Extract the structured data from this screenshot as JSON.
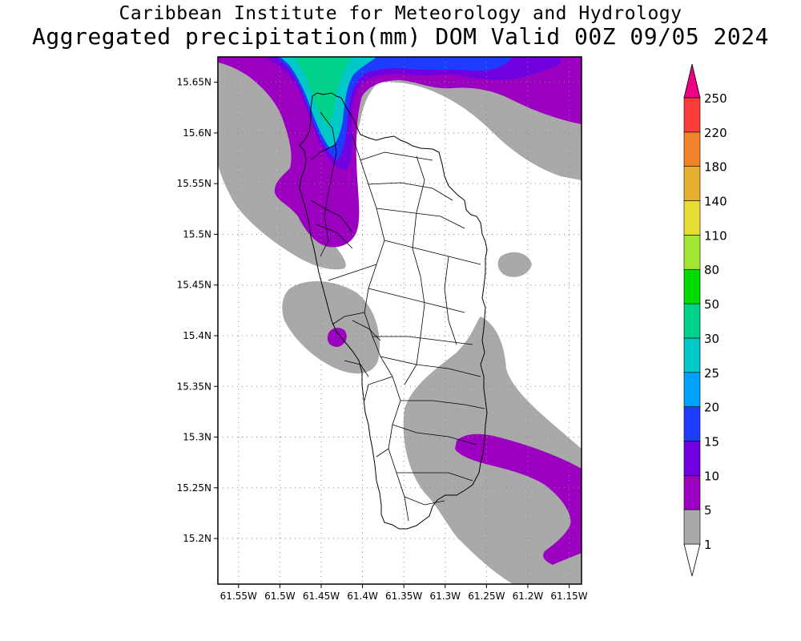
{
  "title": {
    "line1": "Caribbean Institute for Meteorology and Hydrology",
    "line2": "Aggregated precipitation(mm) DOM Valid 00Z 09/05 2024"
  },
  "map": {
    "lon_range": [
      -61.575,
      -61.135
    ],
    "lat_range": [
      15.155,
      15.675
    ],
    "lon_ticks": [
      {
        "value": -61.55,
        "label": "61.55W"
      },
      {
        "value": -61.5,
        "label": "61.5W"
      },
      {
        "value": -61.45,
        "label": "61.45W"
      },
      {
        "value": -61.4,
        "label": "61.4W"
      },
      {
        "value": -61.35,
        "label": "61.35W"
      },
      {
        "value": -61.3,
        "label": "61.3W"
      },
      {
        "value": -61.25,
        "label": "61.25W"
      },
      {
        "value": -61.2,
        "label": "61.2W"
      },
      {
        "value": -61.15,
        "label": "61.15W"
      }
    ],
    "lat_ticks": [
      {
        "value": 15.2,
        "label": "15.2N"
      },
      {
        "value": 15.25,
        "label": "15.25N"
      },
      {
        "value": 15.3,
        "label": "15.3N"
      },
      {
        "value": 15.35,
        "label": "15.35N"
      },
      {
        "value": 15.4,
        "label": "15.4N"
      },
      {
        "value": 15.45,
        "label": "15.45N"
      },
      {
        "value": 15.5,
        "label": "15.5N"
      },
      {
        "value": 15.55,
        "label": "15.55N"
      },
      {
        "value": 15.6,
        "label": "15.6N"
      },
      {
        "value": 15.65,
        "label": "15.65N"
      }
    ],
    "grid": true
  },
  "colorbar": {
    "levels": [
      "1",
      "5",
      "10",
      "15",
      "20",
      "25",
      "30",
      "50",
      "80",
      "110",
      "140",
      "180",
      "220",
      "250"
    ],
    "colors": [
      "#a9a9a9",
      "#9b00c0",
      "#7000e0",
      "#1e3cff",
      "#00a0ff",
      "#00c8c8",
      "#00d28c",
      "#00dc00",
      "#a0e632",
      "#e6dc32",
      "#e6af2d",
      "#f08228",
      "#fa3c3c",
      "#f00082"
    ]
  },
  "colors": {
    "gray": "#a9a9a9",
    "purple": "#9b00c0",
    "violet": "#7000e0",
    "blue": "#1e3cff",
    "cyan": "#00c8c8",
    "teal": "#00d28c"
  }
}
